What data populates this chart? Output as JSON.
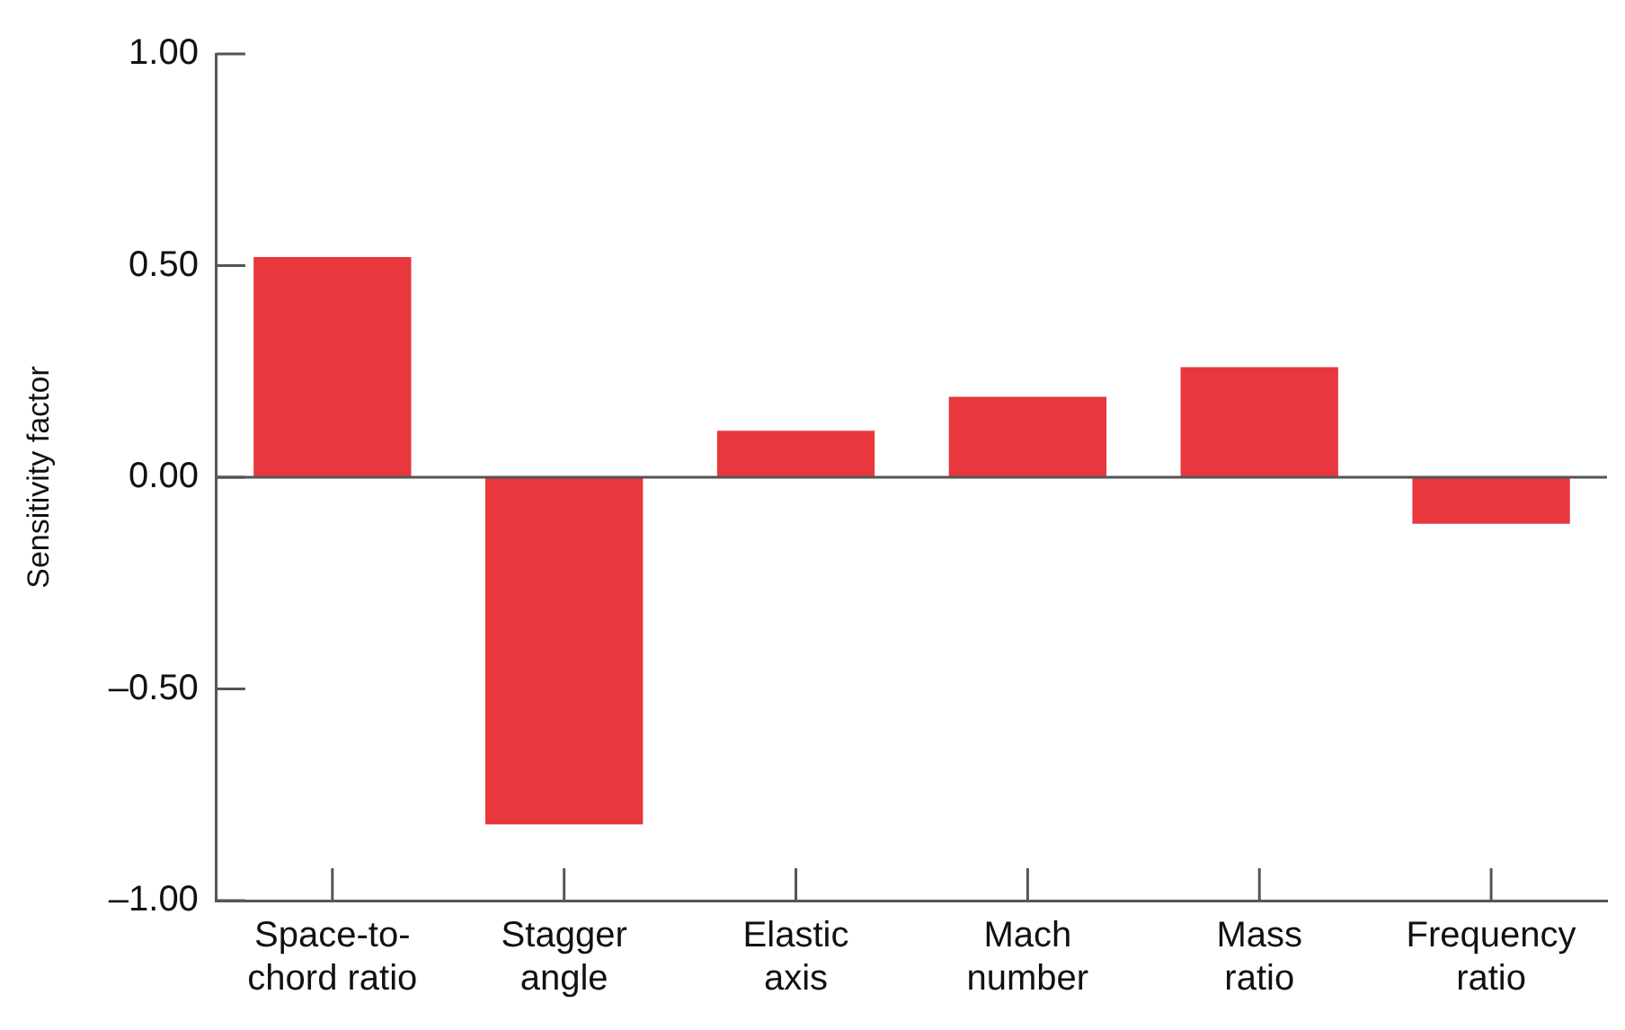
{
  "chart_data": {
    "type": "bar",
    "ylabel": "Sensitivity factor",
    "categories": [
      "Space-to-\nchord ratio",
      "Stagger\nangle",
      "Elastic\naxis",
      "Mach\nnumber",
      "Mass\nratio",
      "Frequency\nratio"
    ],
    "values": [
      0.52,
      -0.82,
      0.11,
      0.19,
      0.26,
      -0.11
    ],
    "color": "#e8383d",
    "ylim": [
      -1,
      1
    ],
    "yticks": [
      {
        "value": -1,
        "label": "–1.00"
      },
      {
        "value": -0.5,
        "label": "–0.50"
      },
      {
        "value": 0,
        "label": "0.00"
      },
      {
        "value": 0.5,
        "label": "0.50"
      },
      {
        "value": 1,
        "label": "1.00"
      }
    ],
    "ref_lines": [
      {
        "axis": "y",
        "value": 0,
        "color": "#555555"
      }
    ],
    "grid": false,
    "legend": false
  }
}
